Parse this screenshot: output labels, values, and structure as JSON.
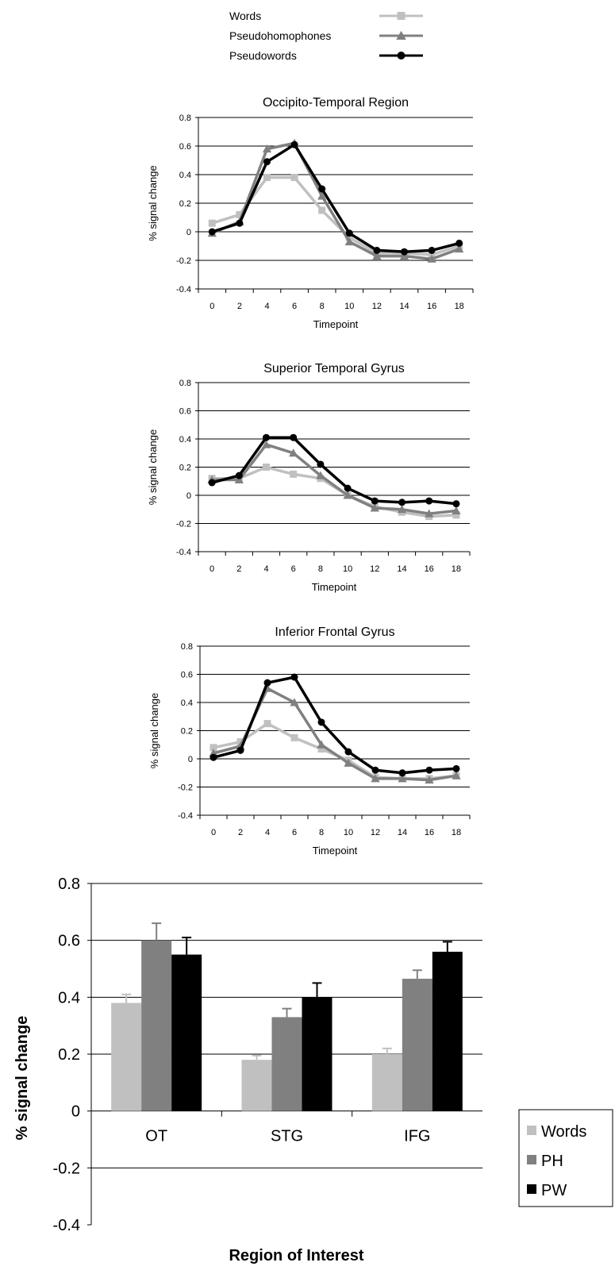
{
  "legend_top": [
    {
      "label": "Words",
      "color": "#c0c0c0",
      "marker": "square"
    },
    {
      "label": "Pseudohomophones",
      "color": "#808080",
      "marker": "triangle"
    },
    {
      "label": "Pseudowords",
      "color": "#000000",
      "marker": "circle"
    }
  ],
  "chart_data": [
    {
      "type": "line",
      "title": "Occipito-Temporal Region",
      "xlabel": "Timepoint",
      "ylabel": "% signal change",
      "x": [
        0,
        2,
        4,
        6,
        8,
        10,
        12,
        14,
        16,
        18
      ],
      "ylim": [
        -0.4,
        0.8
      ],
      "yticks": [
        "0.8",
        "0.6",
        "0.4",
        "0.2",
        "0",
        "-0.2",
        "-0.4"
      ],
      "grid": true,
      "series": [
        {
          "name": "Words",
          "color": "#c0c0c0",
          "marker": "square",
          "values": [
            0.06,
            0.12,
            0.38,
            0.38,
            0.15,
            -0.04,
            -0.15,
            -0.15,
            -0.16,
            -0.1
          ]
        },
        {
          "name": "Pseudohomophones",
          "color": "#808080",
          "marker": "triangle",
          "values": [
            -0.01,
            0.07,
            0.58,
            0.62,
            0.25,
            -0.07,
            -0.17,
            -0.17,
            -0.19,
            -0.12
          ]
        },
        {
          "name": "Pseudowords",
          "color": "#000000",
          "marker": "circle",
          "values": [
            0.0,
            0.06,
            0.49,
            0.61,
            0.3,
            -0.01,
            -0.13,
            -0.14,
            -0.13,
            -0.08
          ]
        }
      ]
    },
    {
      "type": "line",
      "title": "Superior Temporal Gyrus",
      "xlabel": "Timepoint",
      "ylabel": "% signal change",
      "x": [
        0,
        2,
        4,
        6,
        8,
        10,
        12,
        14,
        16,
        18
      ],
      "ylim": [
        -0.4,
        0.8
      ],
      "yticks": [
        "0.8",
        "0.6",
        "0.4",
        "0.2",
        "0",
        "-0.2",
        "-0.4"
      ],
      "grid": true,
      "series": [
        {
          "name": "Words",
          "color": "#c0c0c0",
          "marker": "square",
          "values": [
            0.12,
            0.12,
            0.2,
            0.15,
            0.12,
            0.0,
            -0.08,
            -0.12,
            -0.15,
            -0.14
          ]
        },
        {
          "name": "Pseudohomophones",
          "color": "#808080",
          "marker": "triangle",
          "values": [
            0.11,
            0.11,
            0.36,
            0.3,
            0.14,
            0.0,
            -0.09,
            -0.1,
            -0.13,
            -0.11
          ]
        },
        {
          "name": "Pseudowords",
          "color": "#000000",
          "marker": "circle",
          "values": [
            0.09,
            0.14,
            0.41,
            0.41,
            0.22,
            0.05,
            -0.04,
            -0.05,
            -0.04,
            -0.06
          ]
        }
      ]
    },
    {
      "type": "line",
      "title": "Inferior Frontal Gyrus",
      "xlabel": "Timepoint",
      "ylabel": "% signal change",
      "x": [
        0,
        2,
        4,
        6,
        8,
        10,
        12,
        14,
        16,
        18
      ],
      "ylim": [
        -0.4,
        0.8
      ],
      "yticks": [
        "0.8",
        "0.6",
        "0.4",
        "0.2",
        "0",
        "-0.2",
        "-0.4"
      ],
      "grid": true,
      "series": [
        {
          "name": "Words",
          "color": "#c0c0c0",
          "marker": "square",
          "values": [
            0.08,
            0.12,
            0.25,
            0.15,
            0.07,
            -0.01,
            -0.13,
            -0.14,
            -0.14,
            -0.12
          ]
        },
        {
          "name": "Pseudohomophones",
          "color": "#808080",
          "marker": "triangle",
          "values": [
            0.04,
            0.09,
            0.5,
            0.4,
            0.1,
            -0.03,
            -0.14,
            -0.14,
            -0.15,
            -0.12
          ]
        },
        {
          "name": "Pseudowords",
          "color": "#000000",
          "marker": "circle",
          "values": [
            0.01,
            0.06,
            0.54,
            0.58,
            0.26,
            0.05,
            -0.08,
            -0.1,
            -0.08,
            -0.07
          ]
        }
      ]
    },
    {
      "type": "bar",
      "xlabel": "Region of Interest",
      "ylabel": "% signal change",
      "categories": [
        "OT",
        "STG",
        "IFG"
      ],
      "ylim": [
        -0.4,
        0.8
      ],
      "yticks": [
        "0.8",
        "0.6",
        "0.4",
        "0.2",
        "0",
        "-0.2",
        "-0.4"
      ],
      "grid": true,
      "legend_position": "right",
      "series": [
        {
          "name": "Words",
          "color": "#c0c0c0",
          "values": [
            0.38,
            0.18,
            0.2
          ],
          "errors": [
            0.03,
            0.015,
            0.02
          ]
        },
        {
          "name": "PH",
          "color": "#808080",
          "values": [
            0.6,
            0.33,
            0.465
          ],
          "errors": [
            0.06,
            0.03,
            0.03
          ]
        },
        {
          "name": "PW",
          "color": "#000000",
          "values": [
            0.55,
            0.4,
            0.56
          ],
          "errors": [
            0.06,
            0.05,
            0.035
          ]
        }
      ]
    }
  ]
}
